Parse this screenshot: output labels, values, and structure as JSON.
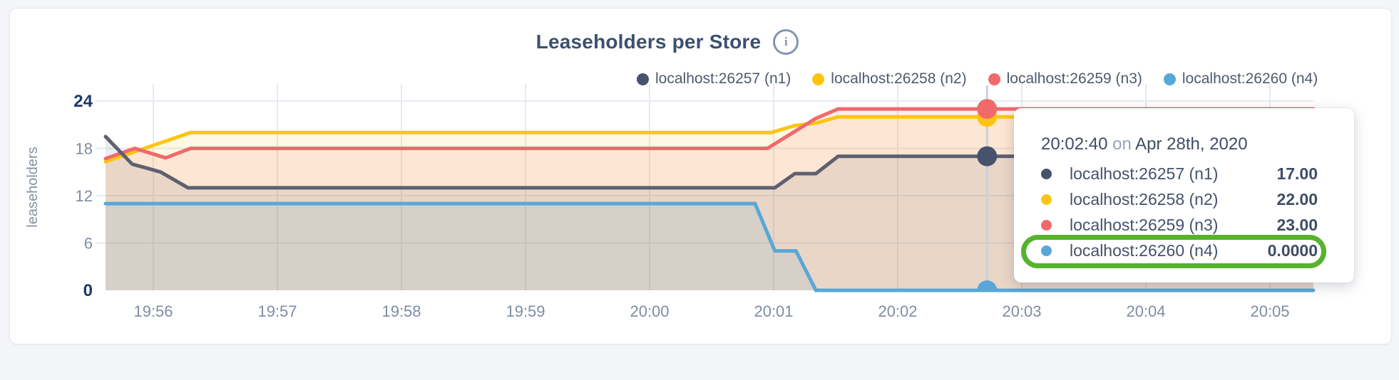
{
  "page": {
    "background": "#f3f5f8",
    "card_background": "#ffffff"
  },
  "chart": {
    "title": "Leaseholders per Store",
    "info_icon_glyph": "i",
    "legend": [
      {
        "label": "localhost:26257 (n1)",
        "color": "#47536d"
      },
      {
        "label": "localhost:26258 (n2)",
        "color": "#fdc511"
      },
      {
        "label": "localhost:26259 (n3)",
        "color": "#f0696b"
      },
      {
        "label": "localhost:26260 (n4)",
        "color": "#58a7d8"
      }
    ]
  },
  "chart_data": {
    "type": "area",
    "title": "Leaseholders per Store",
    "ylabel": "leaseholders",
    "xlabel": "",
    "x_axis_note": "time of day on Apr 28th, 2020; t = minutes after 19:56",
    "x_ticks": [
      "19:56",
      "19:57",
      "19:58",
      "19:59",
      "20:00",
      "20:01",
      "20:02",
      "20:03",
      "20:04",
      "20:05"
    ],
    "y_ticks": [
      0,
      6,
      12,
      18,
      24
    ],
    "y_ticks_emphasized": [
      0,
      24
    ],
    "ylim": [
      0,
      24
    ],
    "x_range_t": [
      -0.385,
      9.35
    ],
    "grid": true,
    "legend_position": "top-right",
    "fill_opacity": 0.12,
    "series": [
      {
        "name": "localhost:26257 (n1)",
        "color": "#47536d",
        "line_color": "#5e6070",
        "points": [
          [
            -0.385,
            19.5
          ],
          [
            -0.17,
            16
          ],
          [
            -0.03,
            15.4
          ],
          [
            0.06,
            15
          ],
          [
            0.28,
            13
          ],
          [
            5.01,
            13
          ],
          [
            5.17,
            14.8
          ],
          [
            5.34,
            14.8
          ],
          [
            5.52,
            17
          ],
          [
            9.35,
            17
          ]
        ]
      },
      {
        "name": "localhost:26258 (n2)",
        "color": "#fdc511",
        "line_color": "#fdc511",
        "points": [
          [
            -0.385,
            16.3
          ],
          [
            0.3,
            20
          ],
          [
            4.98,
            20
          ],
          [
            5.17,
            20.9
          ],
          [
            5.34,
            21.2
          ],
          [
            5.52,
            22
          ],
          [
            9.35,
            22
          ]
        ]
      },
      {
        "name": "localhost:26259 (n3)",
        "color": "#f0696b",
        "line_color": "#f0696b",
        "points": [
          [
            -0.385,
            16.7
          ],
          [
            -0.15,
            18
          ],
          [
            0.1,
            16.8
          ],
          [
            0.3,
            18
          ],
          [
            4.95,
            18
          ],
          [
            5.34,
            21.8
          ],
          [
            5.52,
            23
          ],
          [
            9.35,
            23
          ]
        ]
      },
      {
        "name": "localhost:26260 (n4)",
        "color": "#58a7d8",
        "line_color": "#58a7d8",
        "points": [
          [
            -0.385,
            11
          ],
          [
            4.85,
            11
          ],
          [
            5.01,
            5
          ],
          [
            5.18,
            5
          ],
          [
            5.34,
            0
          ],
          [
            9.35,
            0
          ]
        ]
      }
    ],
    "hover": {
      "t": 6.72,
      "time_label": "20:02:40",
      "values": {
        "localhost:26257 (n1)": 17,
        "localhost:26258 (n2)": 22,
        "localhost:26259 (n3)": 23,
        "localhost:26260 (n4)": 0
      }
    }
  },
  "tooltip": {
    "time": "20:02:40",
    "connector": "on",
    "date": "Apr 28th, 2020",
    "rows": [
      {
        "label": "localhost:26257 (n1)",
        "value": "17.00",
        "color": "#47536d",
        "highlighted": false
      },
      {
        "label": "localhost:26258 (n2)",
        "value": "22.00",
        "color": "#fdc511",
        "highlighted": false
      },
      {
        "label": "localhost:26259 (n3)",
        "value": "23.00",
        "color": "#f0696b",
        "highlighted": false
      },
      {
        "label": "localhost:26260 (n4)",
        "value": "0.0000",
        "color": "#58a7d8",
        "highlighted": true
      }
    ]
  },
  "annotation": {
    "shape": "rounded-rect",
    "color": "#55b32d",
    "target_row": "localhost:26260 (n4)"
  },
  "colors": {
    "gridline": "#e5eaf1",
    "hover_line": "#c7d1de",
    "axis_tick": "#7e8ca4",
    "axis_tick_strong": "#1d3a66",
    "title": "#3b506f",
    "legend_text": "#4e5a6d",
    "tooltip_text": "#3f4d66",
    "tooltip_muted": "#9aa4b5"
  }
}
